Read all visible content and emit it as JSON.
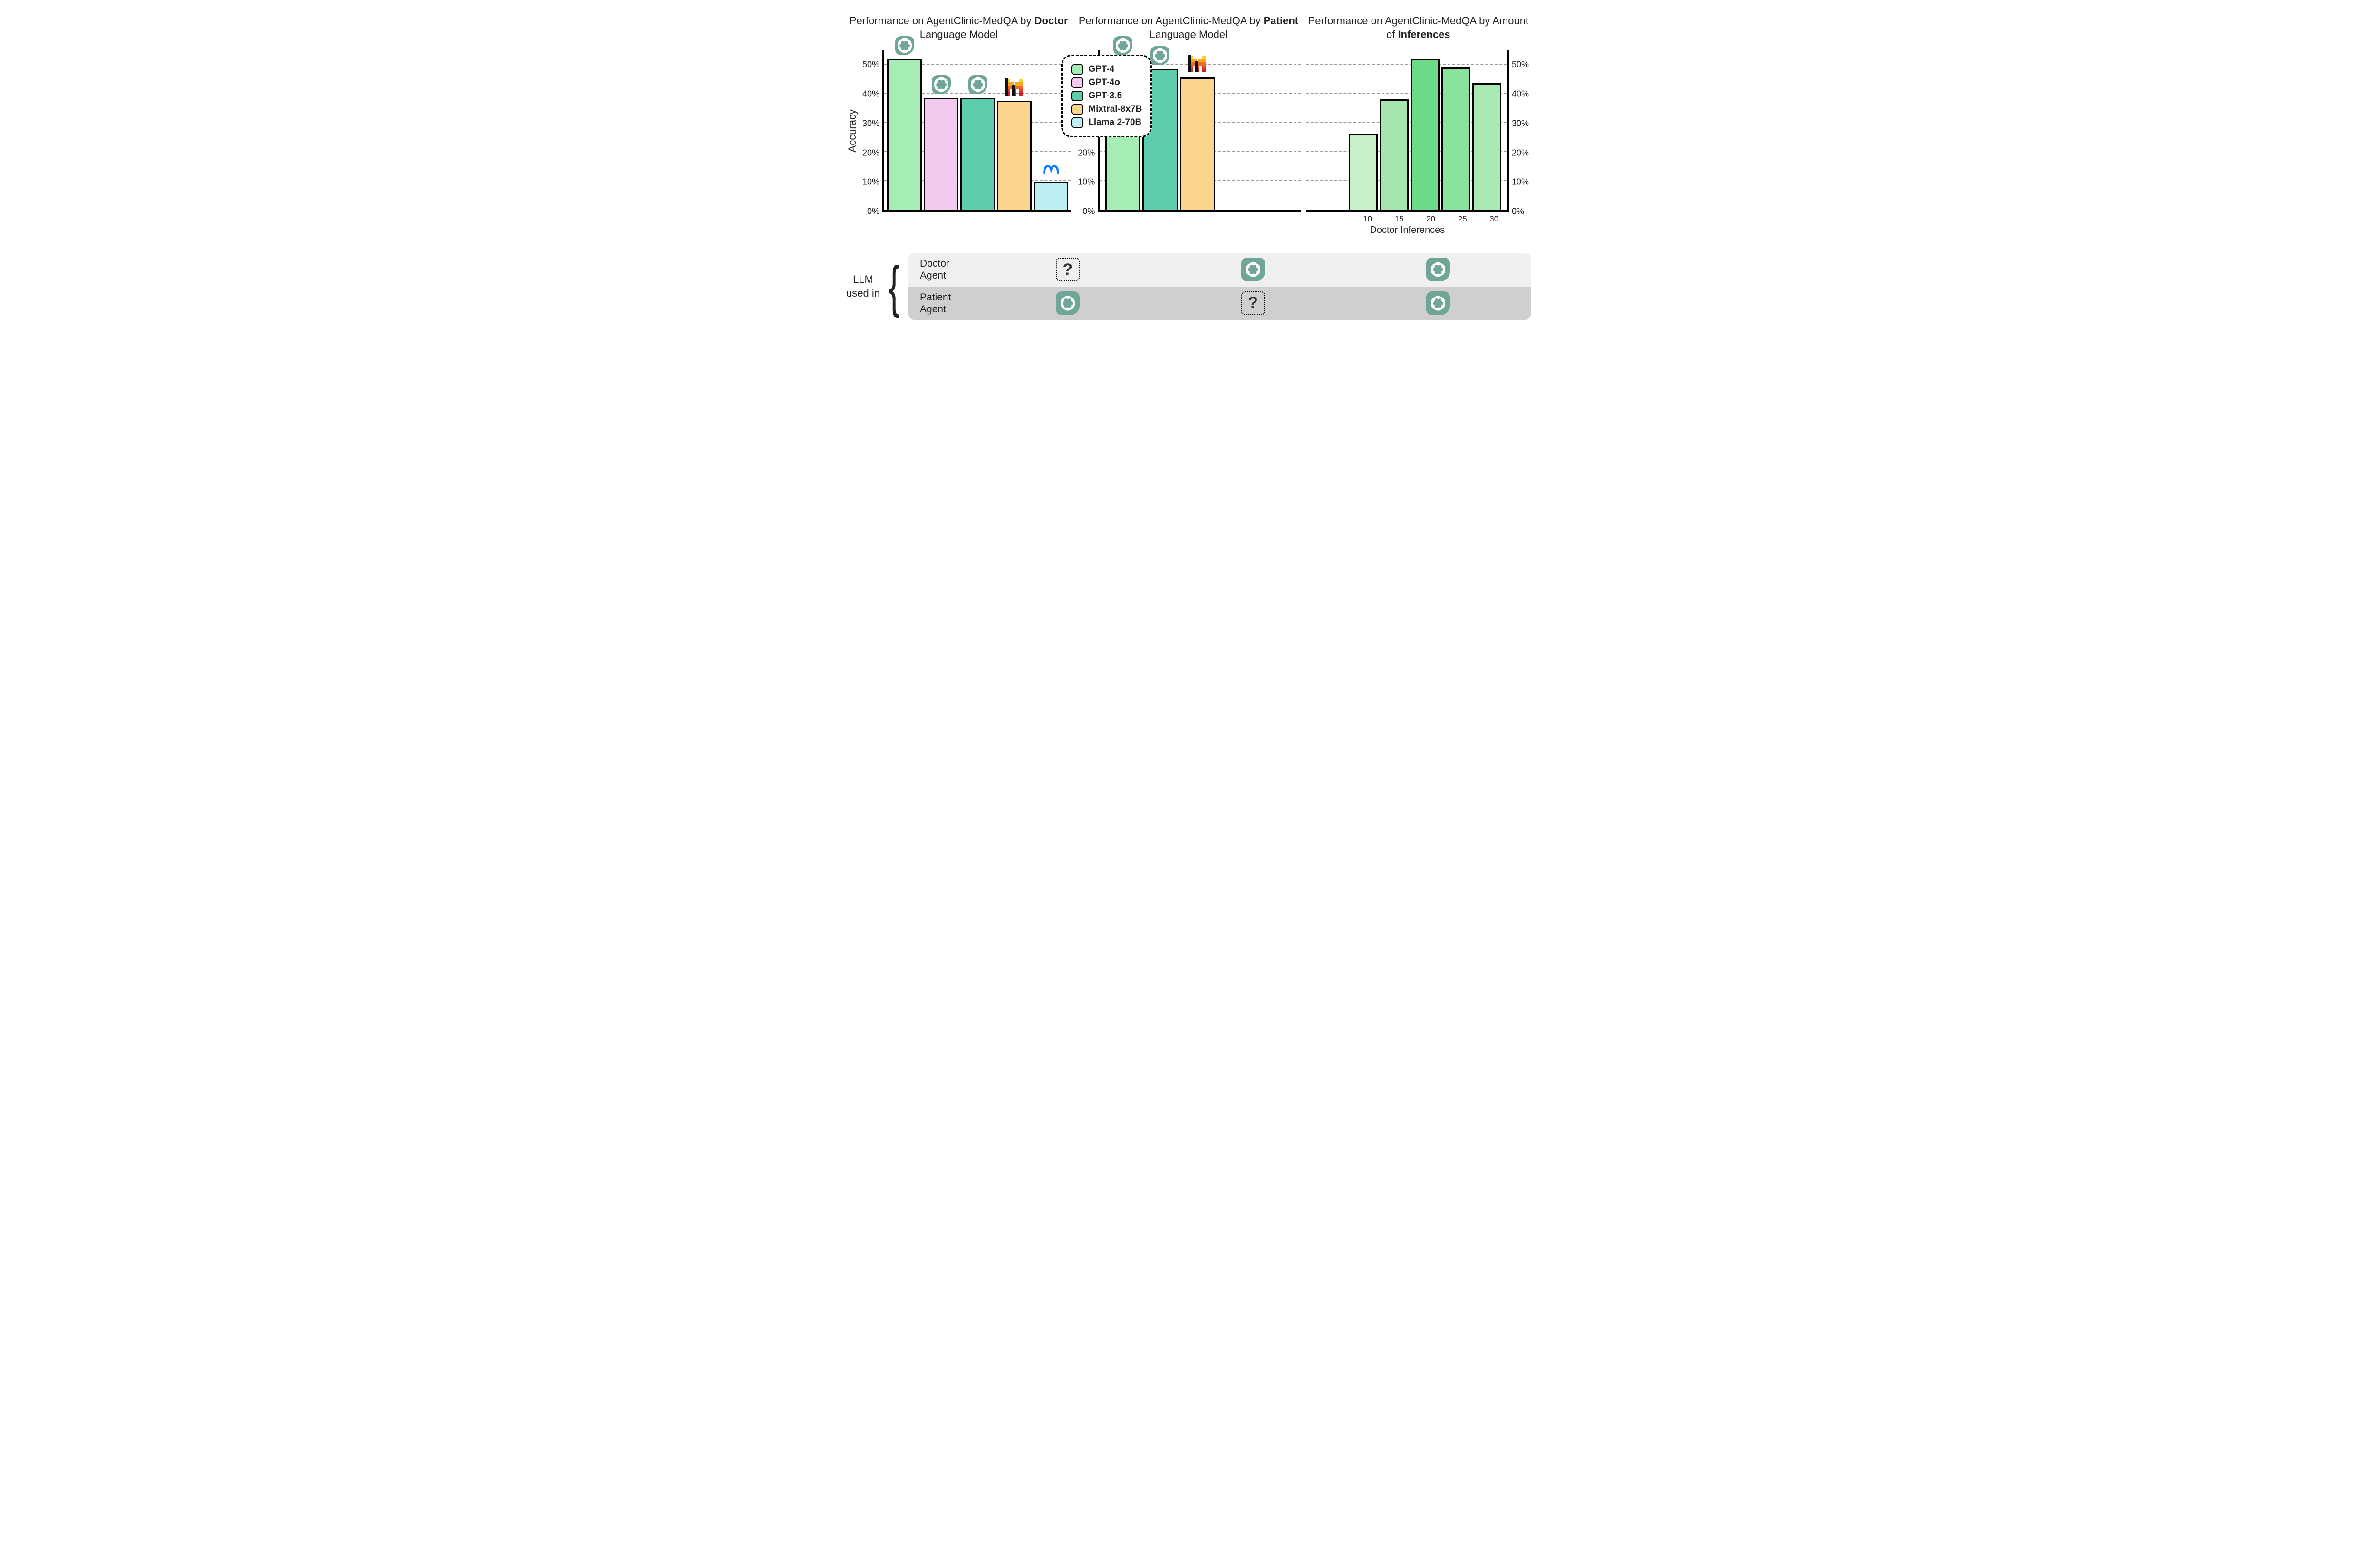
{
  "colors": {
    "gpt4": "#a6edb5",
    "gpt4o": "#f4c9ee",
    "gpt35": "#5cceae",
    "mixtral": "#fad58b",
    "llama": "#bceff2",
    "inference_gradient": [
      "#c7efc9",
      "#a5e6ad",
      "#6bdb8a",
      "#88e29c",
      "#a9e8b3"
    ],
    "openai_badge": "#6fa698",
    "grid": "#9a9a9a",
    "axis": "#000000",
    "bg": "#ffffff",
    "row_doctor": "#efefef",
    "row_patient": "#cfcfcf"
  },
  "typography": {
    "title_fontsize": 22,
    "tick_fontsize": 18,
    "legend_fontsize": 19,
    "axis_label_fontsize": 22
  },
  "y_axis": {
    "label": "Accuracy",
    "ylim": [
      0,
      55
    ],
    "ticks": [
      0,
      10,
      20,
      30,
      40,
      50
    ],
    "tick_labels": [
      "0%",
      "10%",
      "20%",
      "30%",
      "40%",
      "50%"
    ]
  },
  "legend": {
    "items": [
      {
        "label": "GPT-4",
        "color_key": "gpt4"
      },
      {
        "label": "GPT-4o",
        "color_key": "gpt4o"
      },
      {
        "label": "GPT-3.5",
        "color_key": "gpt35"
      },
      {
        "label": "Mixtral-8x7B",
        "color_key": "mixtral"
      },
      {
        "label": "Llama 2-70B",
        "color_key": "llama"
      }
    ],
    "border_dash": true,
    "border_radius": 22
  },
  "panels": [
    {
      "id": "doctor",
      "title_pre": "Performance on AgentClinic-MedQA by ",
      "title_bold": "Doctor",
      "title_post": " Language Model",
      "type": "bar",
      "axis_side": "left",
      "show_y_axis_label": true,
      "bars": [
        {
          "value": 52,
          "color_key": "gpt4",
          "icon": "openai"
        },
        {
          "value": 38.5,
          "color_key": "gpt4o",
          "icon": "openai"
        },
        {
          "value": 38.5,
          "color_key": "gpt35",
          "icon": "openai"
        },
        {
          "value": 37.5,
          "color_key": "mixtral",
          "icon": "mistral"
        },
        {
          "value": 9.5,
          "color_key": "llama",
          "icon": "meta"
        }
      ],
      "has_legend_overlay": true
    },
    {
      "id": "patient",
      "title_pre": "Performance on AgentClinic-MedQA by ",
      "title_bold": "Patient",
      "title_post": " Language Model",
      "type": "bar",
      "axis_side": "left",
      "show_y_axis_label": false,
      "bars": [
        {
          "value": 52,
          "color_key": "gpt4",
          "icon": "openai"
        },
        {
          "value": 48.5,
          "color_key": "gpt35",
          "icon": "openai"
        },
        {
          "value": 45.5,
          "color_key": "mixtral",
          "icon": "mistral"
        }
      ]
    },
    {
      "id": "inferences",
      "title_pre": "Performance on AgentClinic-MedQA by Amount of ",
      "title_bold": "Inferences",
      "title_post": "",
      "type": "bar",
      "axis_side": "right",
      "show_y_axis_label": false,
      "x_axis_label": "Doctor Inferences",
      "x_ticks": [
        "10",
        "15",
        "20",
        "25",
        "30"
      ],
      "bars": [
        {
          "value": 26,
          "color_index": 0
        },
        {
          "value": 38,
          "color_index": 1
        },
        {
          "value": 52,
          "color_index": 2
        },
        {
          "value": 49,
          "color_index": 3
        },
        {
          "value": 43.5,
          "color_index": 4
        }
      ]
    }
  ],
  "agent_table": {
    "side_label_line1": "LLM",
    "side_label_line2": "used in",
    "rows": [
      {
        "id": "doctor",
        "label_line1": "Doctor",
        "label_line2": "Agent",
        "cells": [
          "question",
          "openai",
          "openai"
        ]
      },
      {
        "id": "patient",
        "label_line1": "Patient",
        "label_line2": "Agent",
        "cells": [
          "openai",
          "question",
          "openai"
        ]
      }
    ]
  }
}
